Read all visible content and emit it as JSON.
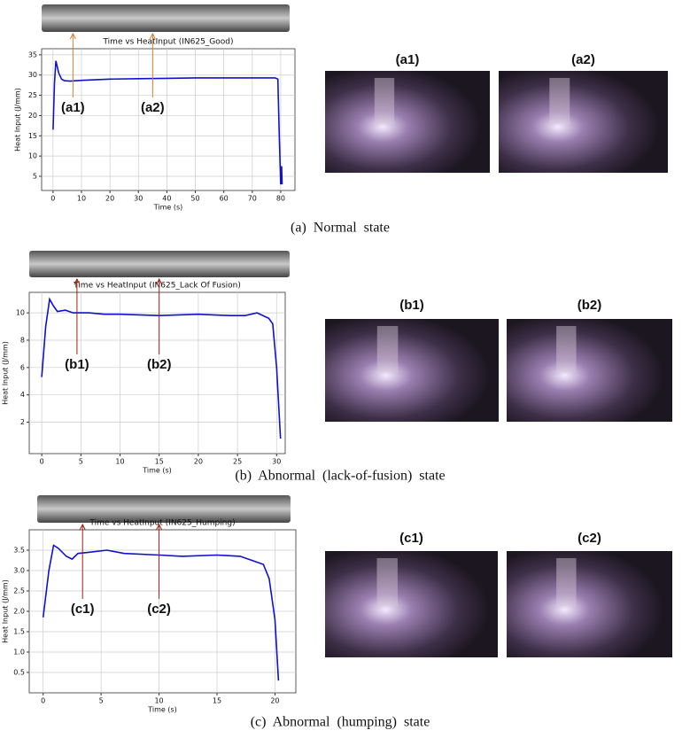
{
  "chart_data": [
    {
      "type": "line",
      "title": "Time vs HeatInput (IN625_Good)",
      "xlabel": "Time (s)",
      "ylabel": "Heat Input (J/mm)",
      "caption": "(a)  Normal  state",
      "color": "#1010d0",
      "grid": true,
      "annotation_color": "#d08030",
      "x": [
        0,
        0.5,
        1,
        2,
        3,
        4,
        6,
        10,
        20,
        30,
        40,
        50,
        60,
        70,
        78,
        79,
        79.5,
        80,
        80.3,
        80.5
      ],
      "values": [
        16.5,
        28,
        33.5,
        30.5,
        29,
        28.6,
        28.5,
        28.7,
        29,
        29.1,
        29.2,
        29.3,
        29.3,
        29.3,
        29.3,
        29,
        15,
        3,
        7.5,
        3
      ],
      "xlim": [
        -4,
        85
      ],
      "ylim": [
        1.5,
        36.5
      ],
      "xticks": [
        0,
        10,
        20,
        30,
        40,
        50,
        60,
        70,
        80
      ],
      "yticks": [
        5,
        10,
        15,
        20,
        25,
        30,
        35
      ],
      "annotations": [
        {
          "text": "(a1)",
          "x": 7
        },
        {
          "text": "(a2)",
          "x": 35
        }
      ]
    },
    {
      "type": "line",
      "title": "Time vs HeatInput (IN625_Lack Of Fusion)",
      "xlabel": "Time (s)",
      "ylabel": "Heat Input (J/mm)",
      "caption": "(b)  Abnormal  (lack-of-fusion)  state",
      "color": "#1010d0",
      "grid": true,
      "annotation_color": "#a02010",
      "x": [
        0,
        0.5,
        1,
        1.5,
        2,
        3,
        4,
        6,
        8,
        10,
        15,
        20,
        24,
        26,
        27.5,
        29,
        29.5,
        30,
        30.5
      ],
      "values": [
        5.3,
        9,
        11,
        10.5,
        10.1,
        10.2,
        10,
        10,
        9.9,
        9.9,
        9.8,
        9.9,
        9.8,
        9.8,
        10,
        9.6,
        9.2,
        6,
        0.8
      ],
      "xlim": [
        -1.6,
        31.1
      ],
      "ylim": [
        -0.3,
        11.5
      ],
      "xticks": [
        0,
        5,
        10,
        15,
        20,
        25,
        30
      ],
      "yticks": [
        2,
        4,
        6,
        8,
        10
      ],
      "annotations": [
        {
          "text": "(b1)",
          "x": 4.5
        },
        {
          "text": "(b2)",
          "x": 15
        }
      ]
    },
    {
      "type": "line",
      "title": "Time vs HeatInput (IN625_Humping)",
      "xlabel": "Time (s)",
      "ylabel": "Heat Input (J/mm)",
      "caption": "(c)  Abnormal  (humping)  state",
      "color": "#1010d0",
      "grid": true,
      "annotation_color": "#a02010",
      "x": [
        0,
        0.5,
        0.9,
        1.3,
        2,
        2.5,
        3,
        4,
        5.5,
        7,
        10,
        12,
        15,
        17,
        18.5,
        19,
        19.5,
        20,
        20.3
      ],
      "values": [
        1.85,
        3.0,
        3.62,
        3.55,
        3.35,
        3.28,
        3.42,
        3.45,
        3.5,
        3.42,
        3.38,
        3.35,
        3.38,
        3.35,
        3.2,
        3.15,
        2.8,
        1.8,
        0.3
      ],
      "xlim": [
        -1.2,
        21.8
      ],
      "ylim": [
        0,
        4.0
      ],
      "xticks": [
        0,
        5,
        10,
        15,
        20
      ],
      "yticks": [
        {
          "value": 0.5,
          "label": "0.5"
        },
        {
          "value": 1,
          "label": "1.0"
        },
        {
          "value": 1.5,
          "label": "1.5"
        },
        {
          "value": 2,
          "label": "2.0"
        },
        {
          "value": 2.5,
          "label": "2.5"
        },
        {
          "value": 3,
          "label": "3.0"
        },
        {
          "value": 3.5,
          "label": "3.5"
        }
      ],
      "annotations": [
        {
          "text": "(c1)",
          "x": 3.4
        },
        {
          "text": "(c2)",
          "x": 10
        }
      ]
    }
  ]
}
